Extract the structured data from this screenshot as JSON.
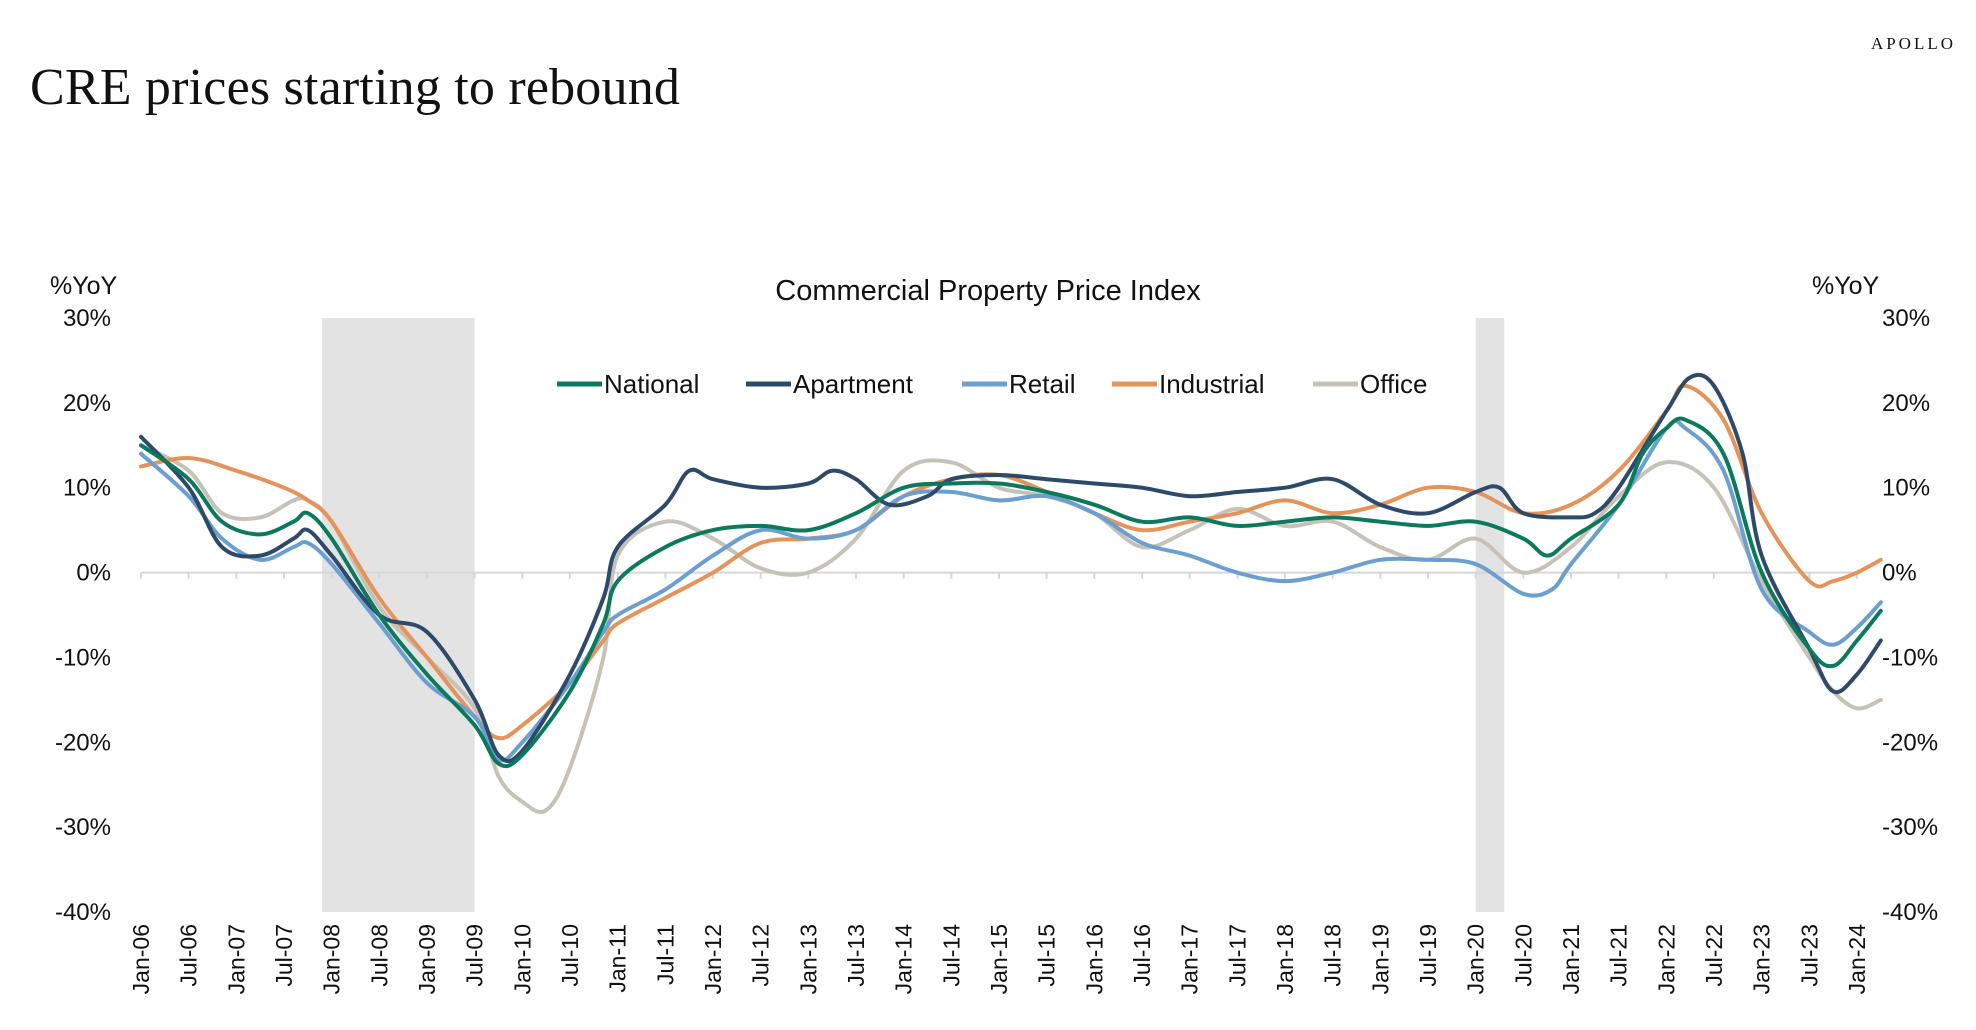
{
  "header": {
    "title": "CRE prices starting to rebound",
    "brand": "APOLLO"
  },
  "chart_data": {
    "type": "line",
    "title": "Commercial Property Price Index",
    "ylabel_left": "%YoY",
    "ylabel_right": "%YoY",
    "ylim": [
      -40,
      30
    ],
    "yticks": [
      30,
      20,
      10,
      0,
      -10,
      -20,
      -30,
      -40
    ],
    "ytick_labels": [
      "30%",
      "20%",
      "10%",
      "0%",
      "-10%",
      "-20%",
      "-30%",
      "-40%"
    ],
    "xlim": [
      2006.0,
      2024.0
    ],
    "x_tick_labels": [
      "Jan-06",
      "Jul-06",
      "Jan-07",
      "Jul-07",
      "Jan-08",
      "Jul-08",
      "Jan-09",
      "Jul-09",
      "Jan-10",
      "Jul-10",
      "Jan-11",
      "Jul-11",
      "Jan-12",
      "Jul-12",
      "Jan-13",
      "Jul-13",
      "Jan-14",
      "Jul-14",
      "Jan-15",
      "Jul-15",
      "Jan-16",
      "Jul-16",
      "Jan-17",
      "Jul-17",
      "Jan-18",
      "Jul-18",
      "Jan-19",
      "Jul-19",
      "Jan-20",
      "Jul-20",
      "Jan-21",
      "Jul-21",
      "Jan-22",
      "Jul-22",
      "Jan-23",
      "Jul-23",
      "Jan-24"
    ],
    "recessions": [
      [
        2007.9,
        2009.5
      ],
      [
        2020.0,
        2020.3
      ]
    ],
    "legend_position": "top-center",
    "grid": false,
    "series": [
      {
        "name": "National",
        "color": "#0b7a5c",
        "points": [
          [
            2006.0,
            15
          ],
          [
            2006.5,
            11
          ],
          [
            2006.85,
            6
          ],
          [
            2007.25,
            4.5
          ],
          [
            2007.6,
            6
          ],
          [
            2007.75,
            7
          ],
          [
            2008.0,
            4
          ],
          [
            2008.5,
            -5
          ],
          [
            2009.0,
            -12
          ],
          [
            2009.5,
            -18
          ],
          [
            2009.75,
            -22.5
          ],
          [
            2010.0,
            -21.5
          ],
          [
            2010.5,
            -14
          ],
          [
            2010.85,
            -6
          ],
          [
            2011.0,
            -1
          ],
          [
            2011.5,
            3
          ],
          [
            2012.0,
            5
          ],
          [
            2012.5,
            5.5
          ],
          [
            2013.0,
            5
          ],
          [
            2013.5,
            7
          ],
          [
            2014.0,
            10
          ],
          [
            2014.5,
            10.5
          ],
          [
            2015.0,
            10.5
          ],
          [
            2015.5,
            9.5
          ],
          [
            2016.0,
            8
          ],
          [
            2016.5,
            6
          ],
          [
            2017.0,
            6.5
          ],
          [
            2017.5,
            5.5
          ],
          [
            2018.0,
            6
          ],
          [
            2018.5,
            6.5
          ],
          [
            2019.0,
            6
          ],
          [
            2019.5,
            5.5
          ],
          [
            2020.0,
            6
          ],
          [
            2020.5,
            4
          ],
          [
            2020.75,
            2
          ],
          [
            2021.0,
            4
          ],
          [
            2021.5,
            8
          ],
          [
            2021.75,
            14
          ],
          [
            2022.0,
            17
          ],
          [
            2022.2,
            18
          ],
          [
            2022.6,
            14
          ],
          [
            2023.0,
            0
          ],
          [
            2023.5,
            -9
          ],
          [
            2023.75,
            -11
          ],
          [
            2024.0,
            -8
          ],
          [
            2024.25,
            -4.5
          ]
        ]
      },
      {
        "name": "Apartment",
        "color": "#2e4a6b",
        "points": [
          [
            2006.0,
            16
          ],
          [
            2006.5,
            10
          ],
          [
            2006.85,
            3
          ],
          [
            2007.25,
            2
          ],
          [
            2007.6,
            4
          ],
          [
            2007.75,
            5
          ],
          [
            2008.0,
            2
          ],
          [
            2008.5,
            -5
          ],
          [
            2009.0,
            -7
          ],
          [
            2009.5,
            -15
          ],
          [
            2009.75,
            -21.5
          ],
          [
            2010.0,
            -21
          ],
          [
            2010.5,
            -12
          ],
          [
            2010.85,
            -3
          ],
          [
            2011.0,
            3
          ],
          [
            2011.5,
            8
          ],
          [
            2011.75,
            12
          ],
          [
            2012.0,
            11
          ],
          [
            2012.5,
            10
          ],
          [
            2013.0,
            10.5
          ],
          [
            2013.25,
            12
          ],
          [
            2013.5,
            11
          ],
          [
            2013.85,
            8
          ],
          [
            2014.25,
            9
          ],
          [
            2014.5,
            11
          ],
          [
            2015.0,
            11.5
          ],
          [
            2015.5,
            11
          ],
          [
            2016.0,
            10.5
          ],
          [
            2016.5,
            10
          ],
          [
            2017.0,
            9
          ],
          [
            2017.5,
            9.5
          ],
          [
            2018.0,
            10
          ],
          [
            2018.5,
            11
          ],
          [
            2019.0,
            8
          ],
          [
            2019.5,
            7
          ],
          [
            2020.0,
            9.5
          ],
          [
            2020.25,
            10
          ],
          [
            2020.5,
            7
          ],
          [
            2021.0,
            6.5
          ],
          [
            2021.25,
            7
          ],
          [
            2021.5,
            10
          ],
          [
            2022.0,
            19
          ],
          [
            2022.25,
            23
          ],
          [
            2022.5,
            22
          ],
          [
            2022.8,
            14
          ],
          [
            2023.0,
            2
          ],
          [
            2023.5,
            -9
          ],
          [
            2023.75,
            -14
          ],
          [
            2024.0,
            -12
          ],
          [
            2024.25,
            -8
          ]
        ]
      },
      {
        "name": "Retail",
        "color": "#6a9fd0",
        "points": [
          [
            2006.0,
            14
          ],
          [
            2006.5,
            9
          ],
          [
            2006.85,
            4
          ],
          [
            2007.25,
            1.5
          ],
          [
            2007.6,
            3
          ],
          [
            2007.75,
            3.5
          ],
          [
            2008.0,
            1
          ],
          [
            2008.5,
            -6
          ],
          [
            2009.0,
            -13
          ],
          [
            2009.5,
            -17
          ],
          [
            2009.75,
            -22
          ],
          [
            2010.0,
            -20
          ],
          [
            2010.5,
            -13
          ],
          [
            2010.85,
            -7
          ],
          [
            2011.0,
            -5
          ],
          [
            2011.5,
            -2
          ],
          [
            2012.0,
            2
          ],
          [
            2012.5,
            5
          ],
          [
            2013.0,
            4
          ],
          [
            2013.5,
            5
          ],
          [
            2014.0,
            9
          ],
          [
            2014.5,
            9.5
          ],
          [
            2015.0,
            8.5
          ],
          [
            2015.5,
            9
          ],
          [
            2016.0,
            7
          ],
          [
            2016.5,
            3.5
          ],
          [
            2017.0,
            2
          ],
          [
            2017.5,
            0
          ],
          [
            2018.0,
            -1
          ],
          [
            2018.5,
            0
          ],
          [
            2019.0,
            1.5
          ],
          [
            2019.5,
            1.5
          ],
          [
            2020.0,
            1
          ],
          [
            2020.5,
            -2.5
          ],
          [
            2020.8,
            -2
          ],
          [
            2021.0,
            1
          ],
          [
            2021.5,
            8
          ],
          [
            2022.0,
            17
          ],
          [
            2022.2,
            17
          ],
          [
            2022.6,
            12
          ],
          [
            2023.0,
            -2
          ],
          [
            2023.5,
            -7
          ],
          [
            2023.75,
            -8.5
          ],
          [
            2024.0,
            -6.5
          ],
          [
            2024.25,
            -3.5
          ]
        ]
      },
      {
        "name": "Industrial",
        "color": "#e4945a",
        "points": [
          [
            2006.0,
            12.5
          ],
          [
            2006.5,
            13.5
          ],
          [
            2007.0,
            12
          ],
          [
            2007.5,
            10
          ],
          [
            2007.75,
            8.5
          ],
          [
            2008.0,
            6
          ],
          [
            2008.5,
            -3
          ],
          [
            2009.0,
            -10
          ],
          [
            2009.5,
            -17
          ],
          [
            2009.75,
            -19.5
          ],
          [
            2010.0,
            -18
          ],
          [
            2010.5,
            -13
          ],
          [
            2010.85,
            -8
          ],
          [
            2011.0,
            -6
          ],
          [
            2011.5,
            -3
          ],
          [
            2012.0,
            0
          ],
          [
            2012.5,
            3.5
          ],
          [
            2013.0,
            4
          ],
          [
            2013.5,
            5
          ],
          [
            2014.0,
            9
          ],
          [
            2014.5,
            11
          ],
          [
            2015.0,
            11.5
          ],
          [
            2015.5,
            9.5
          ],
          [
            2016.0,
            7
          ],
          [
            2016.5,
            5
          ],
          [
            2017.0,
            6
          ],
          [
            2017.5,
            7
          ],
          [
            2018.0,
            8.5
          ],
          [
            2018.5,
            7
          ],
          [
            2019.0,
            8
          ],
          [
            2019.5,
            10
          ],
          [
            2020.0,
            9.5
          ],
          [
            2020.5,
            7
          ],
          [
            2021.0,
            8
          ],
          [
            2021.5,
            12
          ],
          [
            2022.0,
            19
          ],
          [
            2022.2,
            22
          ],
          [
            2022.6,
            18
          ],
          [
            2023.0,
            7
          ],
          [
            2023.5,
            -1
          ],
          [
            2023.75,
            -1
          ],
          [
            2024.0,
            0
          ],
          [
            2024.25,
            1.5
          ]
        ]
      },
      {
        "name": "Office",
        "color": "#c7c2b8",
        "points": [
          [
            2006.0,
            15
          ],
          [
            2006.5,
            12
          ],
          [
            2006.85,
            7
          ],
          [
            2007.25,
            6.5
          ],
          [
            2007.6,
            8.5
          ],
          [
            2007.75,
            8.5
          ],
          [
            2008.0,
            6
          ],
          [
            2008.5,
            -4
          ],
          [
            2009.0,
            -10
          ],
          [
            2009.5,
            -16
          ],
          [
            2009.75,
            -24
          ],
          [
            2010.0,
            -27
          ],
          [
            2010.25,
            -28
          ],
          [
            2010.5,
            -23
          ],
          [
            2010.85,
            -10
          ],
          [
            2011.0,
            2
          ],
          [
            2011.5,
            6
          ],
          [
            2012.0,
            4
          ],
          [
            2012.5,
            0.5
          ],
          [
            2013.0,
            0
          ],
          [
            2013.5,
            4
          ],
          [
            2014.0,
            12
          ],
          [
            2014.5,
            13
          ],
          [
            2015.0,
            10
          ],
          [
            2015.5,
            9
          ],
          [
            2016.0,
            7
          ],
          [
            2016.5,
            3
          ],
          [
            2017.0,
            5
          ],
          [
            2017.5,
            7.5
          ],
          [
            2018.0,
            5.5
          ],
          [
            2018.5,
            6
          ],
          [
            2019.0,
            3
          ],
          [
            2019.5,
            1.5
          ],
          [
            2020.0,
            4
          ],
          [
            2020.5,
            0
          ],
          [
            2021.0,
            3
          ],
          [
            2021.5,
            9
          ],
          [
            2022.0,
            13
          ],
          [
            2022.5,
            10
          ],
          [
            2023.0,
            -1
          ],
          [
            2023.5,
            -10
          ],
          [
            2023.75,
            -14
          ],
          [
            2024.0,
            -16
          ],
          [
            2024.25,
            -15
          ]
        ]
      }
    ]
  }
}
